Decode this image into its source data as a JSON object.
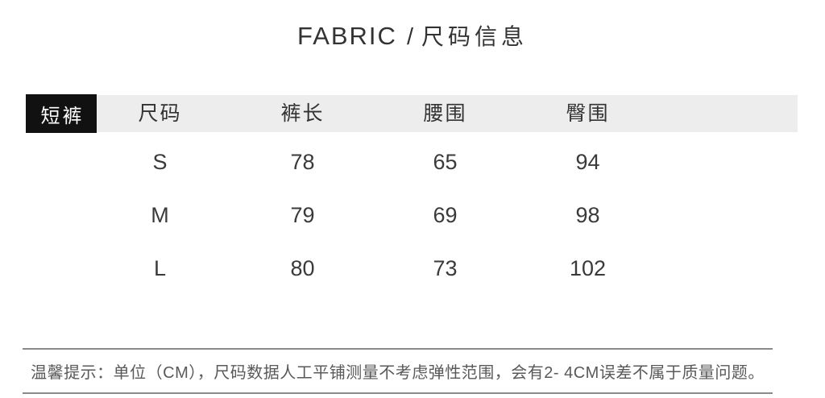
{
  "page": {
    "title": {
      "en": "FABRIC",
      "separator": "/",
      "zh": "尺码信息"
    }
  },
  "size_table": {
    "category_badge": "短裤",
    "columns": [
      "尺码",
      "裤长",
      "腰围",
      "臀围"
    ],
    "rows": [
      [
        "S",
        "78",
        "65",
        "94"
      ],
      [
        "M",
        "79",
        "69",
        "98"
      ],
      [
        "L",
        "80",
        "73",
        "102"
      ]
    ]
  },
  "footer_note": {
    "text": "温馨提示：单位（CM），尺码数据人工平铺测量不考虑弹性范围，会有2- 4CM误差不属于质量问题。"
  },
  "colors": {
    "background": "#ffffff",
    "badge_bg": "#111111",
    "badge_text": "#ffffff",
    "header_bg": "#ededed",
    "title_text": "#333333",
    "table_text": "#3a3a3a",
    "note_text": "#595959",
    "rule": "#8a8a8a"
  }
}
